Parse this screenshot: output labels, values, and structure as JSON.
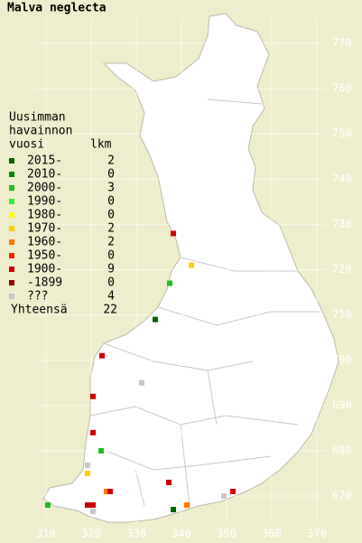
{
  "title": "Malva neglecta",
  "legend": {
    "heading": [
      "Uusimman",
      "havainnon"
    ],
    "col1": "vuosi",
    "col2": "lkm",
    "items": [
      {
        "label": "2015-",
        "count": 2,
        "color": "#006400"
      },
      {
        "label": "2010-",
        "count": 0,
        "color": "#008800"
      },
      {
        "label": "2000-",
        "count": 3,
        "color": "#22bb22"
      },
      {
        "label": "1990-",
        "count": 0,
        "color": "#33ee33"
      },
      {
        "label": "1980-",
        "count": 0,
        "color": "#ffff00"
      },
      {
        "label": "1970-",
        "count": 2,
        "color": "#ffcc00"
      },
      {
        "label": "1960-",
        "count": 2,
        "color": "#ff7700"
      },
      {
        "label": "1950-",
        "count": 0,
        "color": "#ff2200"
      },
      {
        "label": "1900-",
        "count": 9,
        "color": "#cc0000"
      },
      {
        "label": "-1899",
        "count": 0,
        "color": "#990000"
      },
      {
        "label": "???",
        "count": 4,
        "color": "#c8c8c8"
      }
    ],
    "total_label": "Yhteensä",
    "total": 22
  },
  "yticks": [
    770,
    760,
    750,
    740,
    730,
    720,
    710,
    700,
    690,
    680,
    670
  ],
  "xticks": [
    310,
    320,
    330,
    340,
    350,
    360,
    370
  ],
  "points": [
    {
      "x": 338.2,
      "y": 728,
      "period": "1900-"
    },
    {
      "x": 342.2,
      "y": 721,
      "period": "1970-"
    },
    {
      "x": 337.4,
      "y": 717,
      "period": "2000-"
    },
    {
      "x": 334.2,
      "y": 709,
      "period": "2015-"
    },
    {
      "x": 322.4,
      "y": 701,
      "period": "1900-"
    },
    {
      "x": 331.2,
      "y": 695,
      "period": "???"
    },
    {
      "x": 320.4,
      "y": 692,
      "period": "1900-"
    },
    {
      "x": 320.4,
      "y": 684,
      "period": "1900-"
    },
    {
      "x": 322.2,
      "y": 680,
      "period": "2000-"
    },
    {
      "x": 319.2,
      "y": 676.8,
      "period": "???"
    },
    {
      "x": 319.2,
      "y": 675,
      "period": "1970-"
    },
    {
      "x": 337.2,
      "y": 673,
      "period": "1900-"
    },
    {
      "x": 323.4,
      "y": 671,
      "period": "1960-"
    },
    {
      "x": 324.2,
      "y": 671,
      "period": "1900-"
    },
    {
      "x": 351.4,
      "y": 671,
      "period": "1900-"
    },
    {
      "x": 349.4,
      "y": 670,
      "period": "???"
    },
    {
      "x": 341.2,
      "y": 668,
      "period": "1960-"
    },
    {
      "x": 338.2,
      "y": 667,
      "period": "2015-"
    },
    {
      "x": 310.4,
      "y": 668,
      "period": "2000-"
    },
    {
      "x": 319.2,
      "y": 668,
      "period": "1900-"
    },
    {
      "x": 320.4,
      "y": 668,
      "period": "1900-"
    },
    {
      "x": 320.4,
      "y": 666.6,
      "period": "???"
    }
  ]
}
